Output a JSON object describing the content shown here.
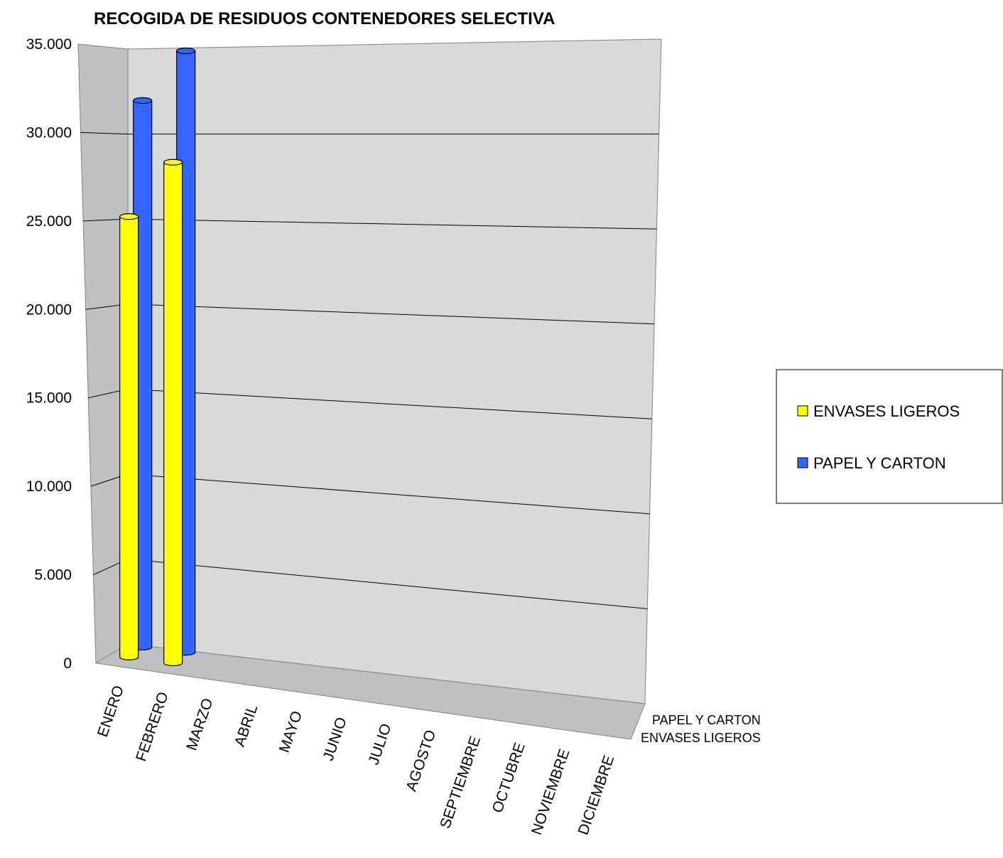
{
  "chart_data": {
    "type": "bar",
    "title": "RECOGIDA DE RESIDUOS CONTENEDORES SELECTIVA",
    "xlabel": "",
    "ylabel": "",
    "categories": [
      "ENERO",
      "FEBRERO",
      "MARZO",
      "ABRIL",
      "MAYO",
      "JUNIO",
      "JULIO",
      "AGOSTO",
      "SEPTIEMBRE",
      "OCTUBRE",
      "NOVIEMBRE",
      "DICIEMBRE"
    ],
    "series": [
      {
        "name": "ENVASES LIGEROS",
        "color": "#ffff00",
        "values": [
          24900,
          28300,
          null,
          null,
          null,
          null,
          null,
          null,
          null,
          null,
          null,
          null
        ]
      },
      {
        "name": "PAPEL Y CARTON",
        "color": "#3366ff",
        "values": [
          30900,
          34000,
          null,
          null,
          null,
          null,
          null,
          null,
          null,
          null,
          null,
          null
        ]
      }
    ],
    "depth_labels": [
      "PAPEL Y CARTON",
      "ENVASES LIGEROS"
    ],
    "yticks": [
      "0",
      "5.000",
      "10.000",
      "15.000",
      "20.000",
      "25.000",
      "30.000",
      "35.000"
    ],
    "ylim": [
      0,
      35000
    ],
    "grid": true,
    "legend": {
      "position": "right",
      "entries": [
        "ENVASES LIGEROS",
        "PAPEL Y CARTON"
      ]
    },
    "bar_shape": "cylinder",
    "wall_color": "#d9d9d9",
    "side_wall_color": "#c0c0c0",
    "floor_color": "#c0c0c0"
  }
}
